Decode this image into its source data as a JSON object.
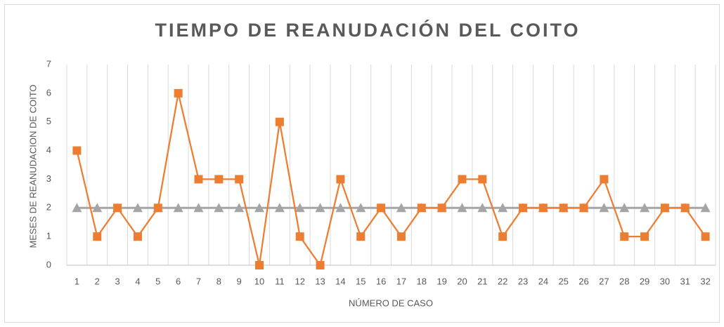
{
  "chart_data": {
    "type": "line",
    "title": "TIEMPO DE REANUDACIÓN DEL COITO",
    "x_label": "NÚMERO DE CASO",
    "y_label": "MESES DE REANUDACION DE COITO",
    "categories": [
      "1",
      "2",
      "3",
      "4",
      "5",
      "6",
      "7",
      "8",
      "9",
      "10",
      "11",
      "12",
      "13",
      "14",
      "15",
      "16",
      "17",
      "18",
      "19",
      "20",
      "21",
      "22",
      "23",
      "24",
      "25",
      "26",
      "27",
      "28",
      "29",
      "30",
      "31",
      "32"
    ],
    "series": [
      {
        "color": "#a5a5a5",
        "marker": "triangle",
        "values": [
          2,
          2,
          2,
          2,
          2,
          2,
          2,
          2,
          2,
          2,
          2,
          2,
          2,
          2,
          2,
          2,
          2,
          2,
          2,
          2,
          2,
          2,
          2,
          2,
          2,
          2,
          2,
          2,
          2,
          2,
          2,
          2
        ]
      },
      {
        "color": "#ed7d31",
        "marker": "square",
        "values": [
          4,
          1,
          2,
          1,
          2,
          6,
          3,
          3,
          3,
          0,
          5,
          1,
          0,
          3,
          1,
          2,
          1,
          2,
          2,
          3,
          3,
          1,
          2,
          2,
          2,
          2,
          3,
          1,
          1,
          2,
          2,
          1
        ]
      }
    ],
    "ylim": [
      0,
      7
    ],
    "yticks": [
      0,
      1,
      2,
      3,
      4,
      5,
      6,
      7
    ],
    "grid": false
  }
}
